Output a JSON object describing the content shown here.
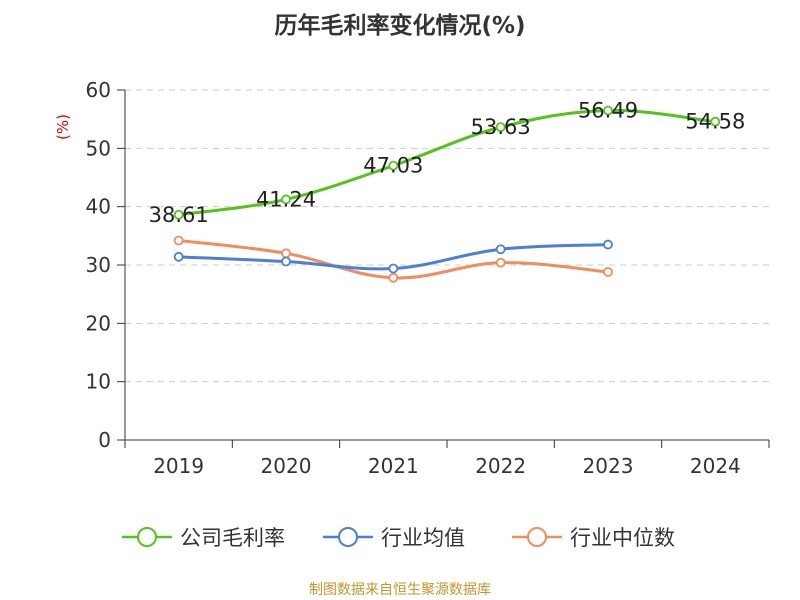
{
  "chart_data": {
    "type": "line",
    "title": "历年毛利率变化情况(%)",
    "ylabel": "(%)",
    "categories": [
      "2019",
      "2020",
      "2021",
      "2022",
      "2023",
      "2024"
    ],
    "ylim": [
      0,
      60
    ],
    "yticks": [
      0,
      10,
      20,
      30,
      40,
      50,
      60
    ],
    "grid": true,
    "legend_position": "bottom",
    "series": [
      {
        "name": "公司毛利率",
        "color": "#52c41a",
        "values": [
          38.61,
          41.24,
          47.03,
          53.63,
          56.49,
          54.58
        ],
        "labels": [
          "38.61",
          "41.24",
          "47.03",
          "53.63",
          "56.49",
          "54.58"
        ]
      },
      {
        "name": "行业均值",
        "color": "#4a7fdb",
        "values": [
          31.4,
          30.6,
          29.4,
          32.7,
          33.5,
          null
        ]
      },
      {
        "name": "行业中位数",
        "color": "#f28c5a",
        "values": [
          34.2,
          32.0,
          27.8,
          30.4,
          28.8,
          null
        ]
      }
    ],
    "source": "制图数据来自恒生聚源数据库"
  }
}
